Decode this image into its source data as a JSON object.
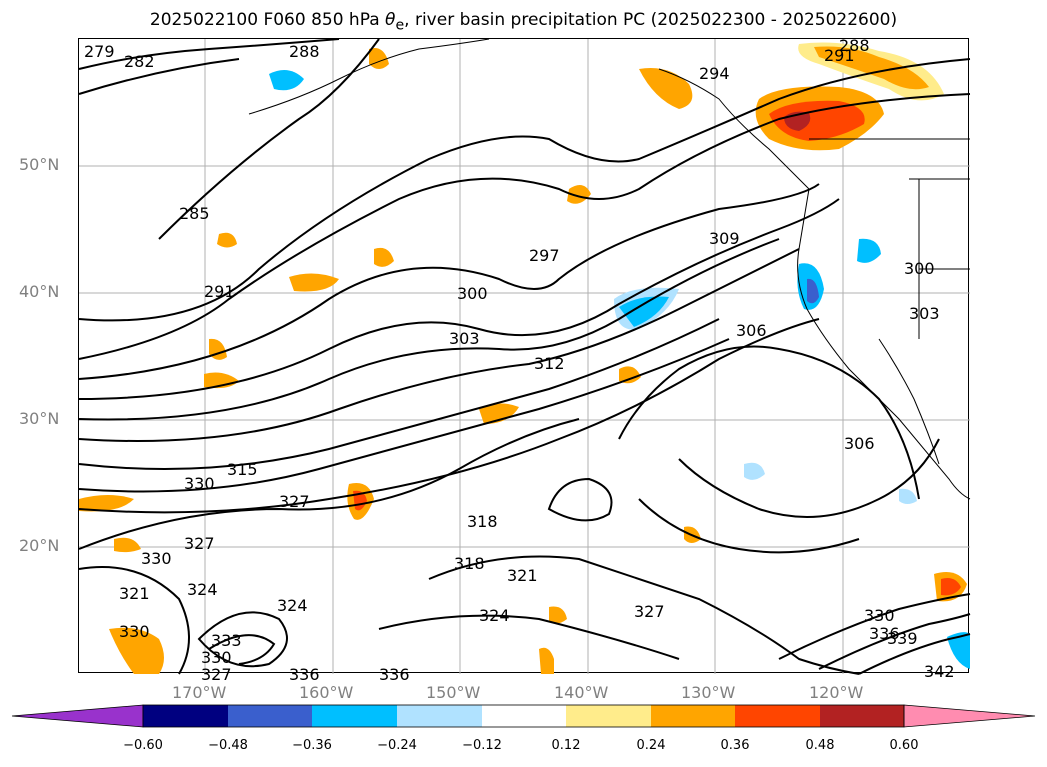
{
  "title_pre": "2025022100 F060 850 hPa ",
  "title_theta": "θ",
  "title_sub": "e",
  "title_post": ", river basin precipitation PC (2025022300 - 2025022600)",
  "map": {
    "lat_labels": [
      "50°N",
      "40°N",
      "30°N",
      "20°N"
    ],
    "lon_labels": [
      "170°W",
      "160°W",
      "150°W",
      "140°W",
      "130°W",
      "120°W"
    ],
    "contour_labels": [
      "279",
      "282",
      "288",
      "291",
      "288",
      "294",
      "285",
      "291",
      "297",
      "300",
      "303",
      "309",
      "312",
      "306",
      "315",
      "330",
      "327",
      "318",
      "330",
      "321",
      "324",
      "327",
      "324",
      "330",
      "333",
      "330",
      "327",
      "336",
      "336",
      "318",
      "321",
      "324",
      "327",
      "330",
      "336",
      "339",
      "342",
      "306",
      "300",
      "303"
    ]
  },
  "colorbar": {
    "colors": [
      "#9932cc",
      "#000080",
      "#3a5fcd",
      "#00bfff",
      "#b0e2ff",
      "#ffffff",
      "#ffec8b",
      "#ffa500",
      "#ff4500",
      "#b22222",
      "#ff8cb0"
    ],
    "ticks": [
      "−0.60",
      "−0.48",
      "−0.36",
      "−0.24",
      "−0.12",
      "0.12",
      "0.24",
      "0.36",
      "0.48",
      "0.60"
    ]
  }
}
